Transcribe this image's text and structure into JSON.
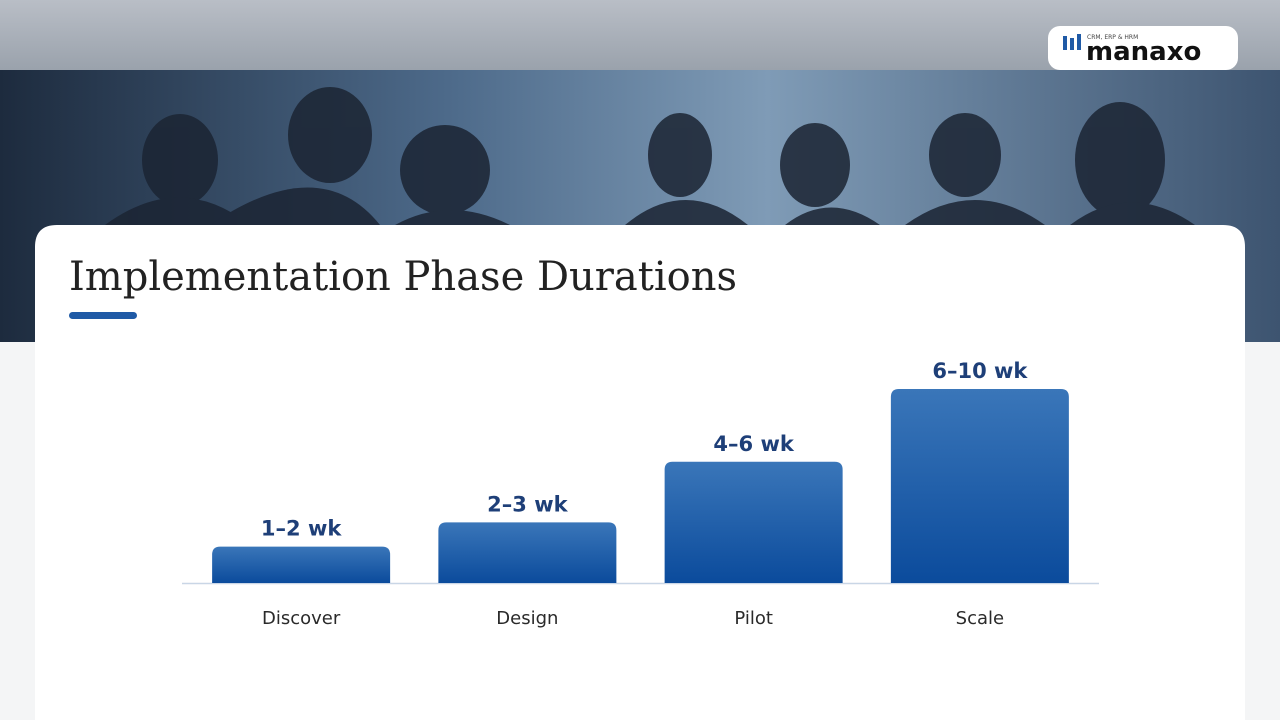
{
  "logo": {
    "name": "manaxo",
    "tagline": "CRM, ERP & HRM"
  },
  "chart_data": {
    "type": "bar",
    "title": "Implementation Phase Durations",
    "categories": [
      "Discover",
      "Design",
      "Pilot",
      "Scale"
    ],
    "values": [
      1.5,
      2.5,
      5,
      8
    ],
    "value_labels": [
      "1–2 wk",
      "2–3 wk",
      "4–6 wk",
      "6–10 wk"
    ],
    "color": "#1f5aa6"
  }
}
